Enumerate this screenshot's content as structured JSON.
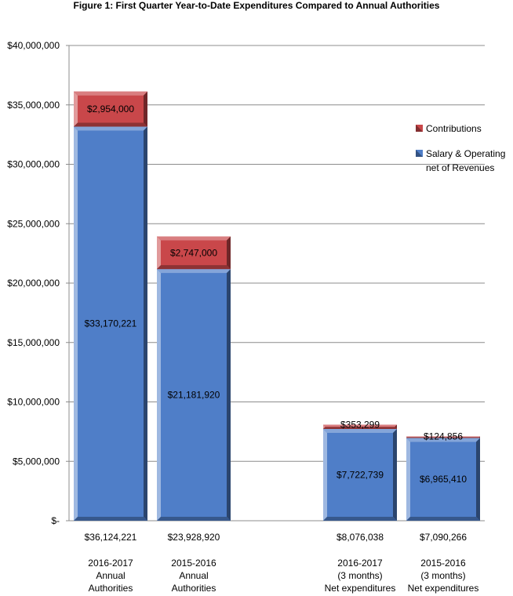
{
  "chart_data": {
    "type": "bar",
    "stacked": true,
    "title": "Figure 1: First Quarter Year-to-Date Expenditures Compared to Annual Authorities",
    "xlabel": "",
    "ylabel": "",
    "ylim": [
      0,
      40000000
    ],
    "ytick_step": 5000000,
    "ytick_labels": [
      "$-",
      "$5,000,000",
      "$10,000,000",
      "$15,000,000",
      "$20,000,000",
      "$25,000,000",
      "$30,000,000",
      "$35,000,000",
      "$40,000,000"
    ],
    "grid": true,
    "legend_position": "right",
    "categories": [
      {
        "total": "$36,124,221",
        "label": [
          "2016-2017",
          "Annual",
          "Authorities"
        ]
      },
      {
        "total": "$23,928,920",
        "label": [
          "2015-2016",
          "Annual",
          "Authorities"
        ]
      },
      {
        "total": "",
        "label": []
      },
      {
        "total": "$8,076,038",
        "label": [
          "2016-2017",
          "(3 months)",
          "Net expenditures"
        ]
      },
      {
        "total": "$7,090,266",
        "label": [
          "2015-2016",
          "(3 months)",
          "Net expenditures"
        ]
      }
    ],
    "series": [
      {
        "name": "Salary & Operating net of Revenues",
        "values": [
          33170221,
          21181920,
          null,
          7722739,
          6965410
        ],
        "labels": [
          "$33,170,221",
          "$21,181,920",
          "",
          "$7,722,739",
          "$6,965,410"
        ],
        "color": "#4f7ec8"
      },
      {
        "name": "Contributions",
        "values": [
          2954000,
          2747000,
          null,
          353299,
          124856
        ],
        "labels": [
          "$2,954,000",
          "$2,747,000",
          "",
          "$353,299",
          "$124,856"
        ],
        "color": "#c9474a"
      }
    ],
    "legend": {
      "entries": [
        {
          "lines": [
            "Contributions"
          ],
          "color": "#c9474a"
        },
        {
          "lines": [
            "Salary & Operating",
            "net of Revenues"
          ],
          "color": "#4f7ec8"
        }
      ]
    }
  }
}
